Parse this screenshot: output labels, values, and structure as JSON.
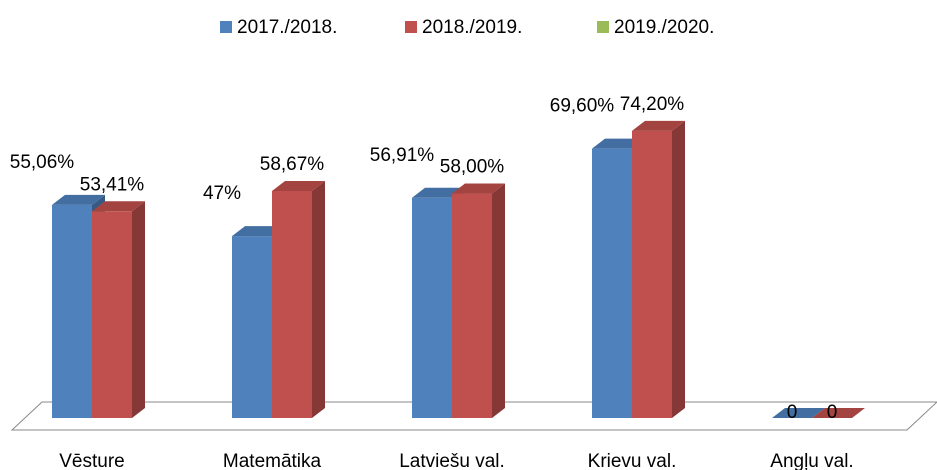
{
  "chart_data": {
    "type": "bar3d",
    "categories": [
      "Vēsture",
      "Matemātika",
      "Latviešu val.",
      "Krievu val.",
      "Angļu val."
    ],
    "series": [
      {
        "name": "2017./2018.",
        "color": "#4f81bd",
        "values": [
          55.06,
          47,
          56.91,
          69.6,
          0
        ],
        "value_labels": [
          "55,06%",
          "47%",
          "56,91%",
          "69,60%",
          "0"
        ]
      },
      {
        "name": "2018./2019.",
        "color": "#c0504d",
        "values": [
          53.41,
          58.67,
          58.0,
          74.2,
          0
        ],
        "value_labels": [
          "53,41%",
          "58,67%",
          "58,00%",
          "74,20%",
          "0"
        ]
      },
      {
        "name": "2019./2020.",
        "color": "#9bbb59",
        "values": [
          null,
          null,
          null,
          null,
          null
        ]
      }
    ],
    "legend": "top"
  }
}
